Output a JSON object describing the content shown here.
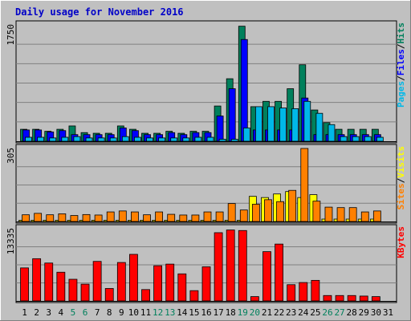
{
  "chart_data": {
    "type": "bar",
    "title": "Daily usage for November 2016",
    "x": [
      "1",
      "2",
      "3",
      "4",
      "5",
      "6",
      "7",
      "8",
      "9",
      "10",
      "11",
      "12",
      "13",
      "14",
      "15",
      "16",
      "17",
      "18",
      "19",
      "20",
      "21",
      "22",
      "23",
      "24",
      "25",
      "26",
      "27",
      "28",
      "29",
      "30",
      "31"
    ],
    "weekend_days": [
      "5",
      "6",
      "12",
      "13",
      "19",
      "20",
      "26",
      "27"
    ],
    "panels": [
      {
        "name": "hits-files-pages",
        "ymax": 1750,
        "ymax_label": "1750",
        "axis_label": [
          "Pages",
          "/",
          "Files",
          "/",
          "Hits"
        ],
        "series": [
          {
            "name": "Hits",
            "color": "#00805c",
            "values": [
              180,
              180,
              150,
              180,
              230,
              130,
              120,
              120,
              230,
              180,
              120,
              120,
              150,
              120,
              150,
              150,
              530,
              940,
              1730,
              520,
              600,
              600,
              790,
              1150,
              470,
              280,
              180,
              180,
              180,
              180,
              0
            ]
          },
          {
            "name": "Files",
            "color": "#0000ff",
            "values": [
              170,
              170,
              140,
              160,
              100,
              100,
              100,
              100,
              200,
              160,
              100,
              100,
              130,
              100,
              130,
              130,
              380,
              790,
              1530,
              170,
              170,
              170,
              170,
              650,
              100,
              100,
              100,
              100,
              100,
              100,
              0
            ]
          },
          {
            "name": "Pages",
            "color": "#00b8e8",
            "values": [
              60,
              60,
              50,
              60,
              70,
              50,
              50,
              50,
              70,
              60,
              50,
              50,
              50,
              50,
              60,
              60,
              30,
              30,
              200,
              520,
              520,
              500,
              490,
              600,
              420,
              250,
              70,
              70,
              70,
              60,
              0
            ]
          }
        ]
      },
      {
        "name": "sites-visits",
        "ymax": 305,
        "ymax_label": "305",
        "axis_label": [
          "Sites",
          "/",
          "Visits"
        ],
        "series": [
          {
            "name": "Visits",
            "color": "#ffff00",
            "values": [
              5,
              5,
              5,
              5,
              5,
              5,
              5,
              5,
              5,
              5,
              5,
              5,
              5,
              5,
              5,
              5,
              5,
              5,
              5,
              105,
              100,
              115,
              125,
              100,
              112,
              10,
              10,
              10,
              10,
              10,
              0
            ]
          },
          {
            "name": "Sites",
            "color": "#ff8000",
            "values": [
              28,
              34,
              28,
              32,
              25,
              29,
              27,
              40,
              44,
              40,
              28,
              40,
              30,
              27,
              27,
              40,
              40,
              75,
              48,
              72,
              91,
              83,
              130,
              305,
              85,
              60,
              58,
              58,
              40,
              44,
              0
            ]
          }
        ]
      },
      {
        "name": "kbytes",
        "ymax": 13335,
        "ymax_label": "13335",
        "axis_label": [
          "KBytes"
        ],
        "series": [
          {
            "name": "KBytes",
            "color": "#ff0000",
            "values": [
              6100,
              7800,
              7000,
              5300,
              4000,
              3100,
              7300,
              2300,
              7100,
              8600,
              2100,
              6500,
              6800,
              5000,
              1900,
              6300,
              12600,
              13100,
              13000,
              800,
              9100,
              10500,
              3000,
              3400,
              3800,
              1000,
              1000,
              1000,
              900,
              800,
              0
            ]
          }
        ]
      }
    ]
  }
}
